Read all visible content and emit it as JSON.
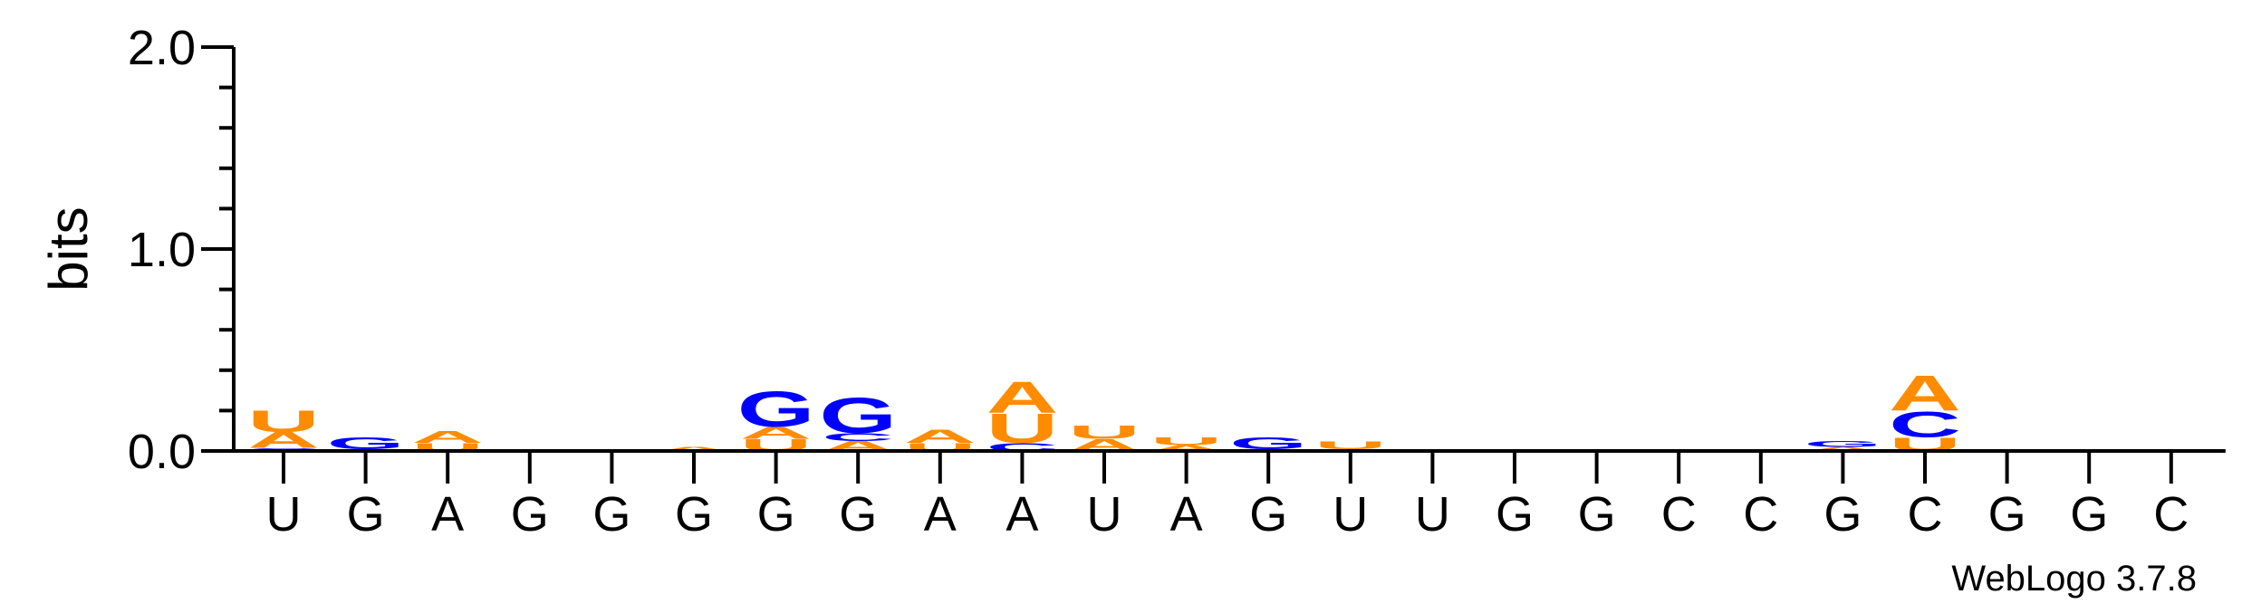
{
  "chart_data": {
    "type": "sequence-logo",
    "ylabel": "bits",
    "ylim": [
      0,
      2
    ],
    "yticks": [
      "0.0",
      "1.0",
      "2.0"
    ],
    "positions": [
      "U",
      "G",
      "A",
      "G",
      "G",
      "G",
      "G",
      "G",
      "A",
      "A",
      "U",
      "A",
      "G",
      "U",
      "U",
      "G",
      "G",
      "C",
      "C",
      "G",
      "C",
      "G",
      "G",
      "C"
    ],
    "stacks": [
      [
        {
          "base": "C",
          "bits": 0.015
        },
        {
          "base": "A",
          "bits": 0.08
        },
        {
          "base": "U",
          "bits": 0.11
        }
      ],
      [
        {
          "base": "A",
          "bits": 0.01
        },
        {
          "base": "G",
          "bits": 0.06
        }
      ],
      [
        {
          "base": "U",
          "bits": 0.04
        },
        {
          "base": "A",
          "bits": 0.06
        }
      ],
      [
        {
          "base": "U",
          "bits": 0.01
        }
      ],
      [
        {
          "base": "U",
          "bits": 0.01
        }
      ],
      [
        {
          "base": "A",
          "bits": 0.02
        }
      ],
      [
        {
          "base": "U",
          "bits": 0.06
        },
        {
          "base": "A",
          "bits": 0.06
        },
        {
          "base": "G",
          "bits": 0.18
        }
      ],
      [
        {
          "base": "A",
          "bits": 0.05
        },
        {
          "base": "C",
          "bits": 0.04
        },
        {
          "base": "G",
          "bits": 0.18
        }
      ],
      [
        {
          "base": "U",
          "bits": 0.04
        },
        {
          "base": "A",
          "bits": 0.07
        }
      ],
      [
        {
          "base": "C",
          "bits": 0.04
        },
        {
          "base": "U",
          "bits": 0.15
        },
        {
          "base": "A",
          "bits": 0.16
        }
      ],
      [
        {
          "base": "A",
          "bits": 0.06
        },
        {
          "base": "U",
          "bits": 0.07
        }
      ],
      [
        {
          "base": "A",
          "bits": 0.03
        },
        {
          "base": "U",
          "bits": 0.04
        }
      ],
      [
        {
          "base": "U",
          "bits": 0.01
        },
        {
          "base": "G",
          "bits": 0.06
        }
      ],
      [
        {
          "base": "A",
          "bits": 0.01
        },
        {
          "base": "U",
          "bits": 0.04
        }
      ],
      [],
      [],
      [],
      [],
      [],
      [
        {
          "base": "A",
          "bits": 0.02
        },
        {
          "base": "G",
          "bits": 0.03
        }
      ],
      [
        {
          "base": "U",
          "bits": 0.07
        },
        {
          "base": "C",
          "bits": 0.13
        },
        {
          "base": "A",
          "bits": 0.18
        }
      ],
      [],
      [],
      []
    ],
    "colors": {
      "A": "#ff8c00",
      "U": "#ff8c00",
      "G": "#0000ff",
      "C": "#0000ff"
    }
  },
  "footer": "WebLogo 3.7.8"
}
